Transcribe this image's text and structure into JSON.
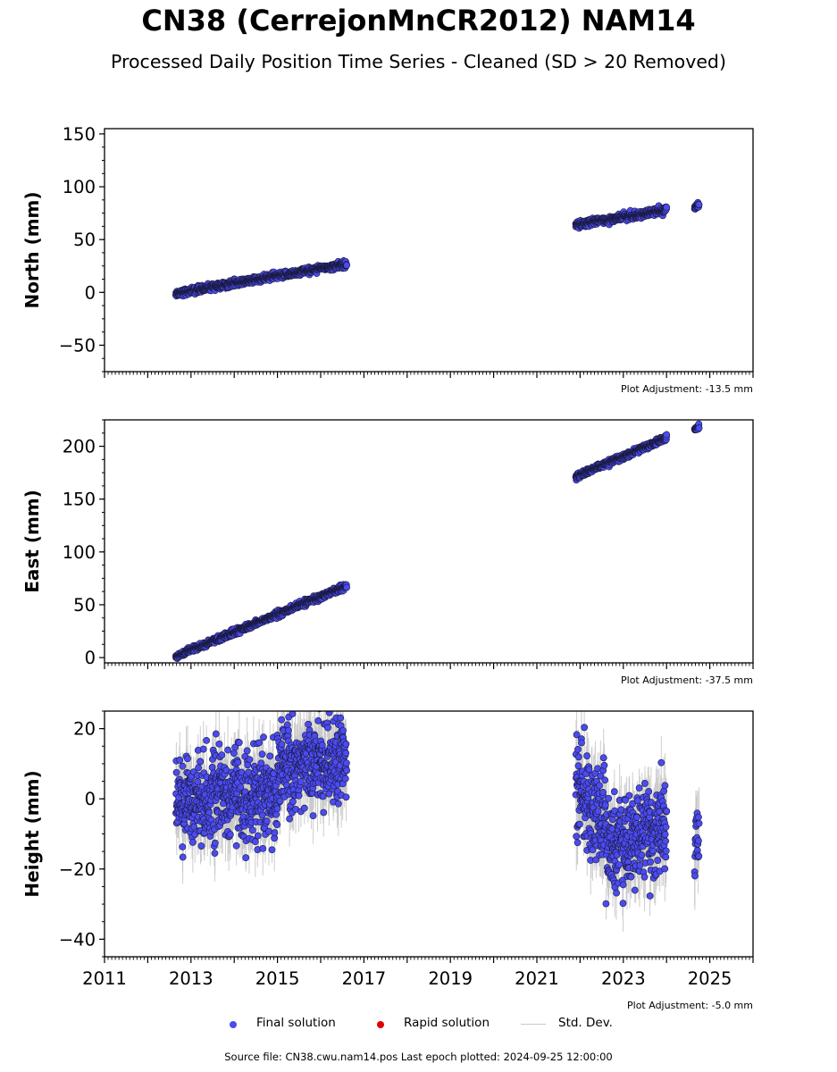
{
  "title": "CN38 (CerrejonMnCR2012) NAM14",
  "subtitle": "Processed Daily Position Time Series - Cleaned (SD > 20 Removed)",
  "source": "Source file: CN38.cwu.nam14.pos  Last epoch plotted: 2024-09-25 12:00:00",
  "legend": {
    "final": "Final solution",
    "rapid": "Rapid solution",
    "std": "Std. Dev."
  },
  "colors": {
    "final": "#4b4bf0",
    "rapid": "#e00000",
    "std": "#c8c8c8"
  },
  "chart_data": [
    {
      "type": "scatter",
      "ylabel": "North (mm)",
      "adjustment": "Plot Adjustment: -13.5 mm",
      "xlim": [
        2011,
        2026
      ],
      "ylim": [
        -75,
        155
      ],
      "yticks": [
        -50,
        0,
        50,
        100,
        150
      ],
      "ytick_labels": [
        "−50",
        "0",
        "50",
        "100",
        "150"
      ],
      "x_tick_labels_shown": false,
      "series": [
        {
          "name": "Final solution",
          "segments": [
            {
              "x0": 2012.65,
              "x1": 2016.6,
              "y0": -1,
              "y1": 27,
              "scatter": 1.5,
              "sd": 3
            },
            {
              "x0": 2021.9,
              "x1": 2024.0,
              "y0": 64,
              "y1": 78,
              "scatter": 1.5,
              "sd": 3
            },
            {
              "x0": 2024.65,
              "x1": 2024.75,
              "y0": 81,
              "y1": 83,
              "scatter": 1.5,
              "sd": 3
            }
          ]
        }
      ]
    },
    {
      "type": "scatter",
      "ylabel": "East (mm)",
      "adjustment": "Plot Adjustment: -37.5 mm",
      "xlim": [
        2011,
        2026
      ],
      "ylim": [
        -5,
        225
      ],
      "yticks": [
        0,
        50,
        100,
        150,
        200
      ],
      "ytick_labels": [
        "0",
        "50",
        "100",
        "150",
        "200"
      ],
      "x_tick_labels_shown": false,
      "series": [
        {
          "name": "Final solution",
          "segments": [
            {
              "x0": 2012.65,
              "x1": 2016.6,
              "y0": 1,
              "y1": 68,
              "scatter": 1.3,
              "sd": 3
            },
            {
              "x0": 2021.9,
              "x1": 2024.0,
              "y0": 171,
              "y1": 208,
              "scatter": 1.3,
              "sd": 3
            },
            {
              "x0": 2024.65,
              "x1": 2024.75,
              "y0": 216,
              "y1": 219,
              "scatter": 1.3,
              "sd": 3
            }
          ]
        }
      ]
    },
    {
      "type": "scatter",
      "ylabel": "Height (mm)",
      "adjustment": "Plot Adjustment: -5.0 mm",
      "xlim": [
        2011,
        2026
      ],
      "ylim": [
        -45,
        25
      ],
      "yticks": [
        -40,
        -20,
        0,
        20
      ],
      "ytick_labels": [
        "−40",
        "−20",
        "0",
        "20"
      ],
      "x_tick_labels_shown": true,
      "xticks": [
        2011,
        2013,
        2015,
        2017,
        2019,
        2021,
        2023,
        2025
      ],
      "xtick_labels": [
        "2011",
        "2013",
        "2015",
        "2017",
        "2019",
        "2021",
        "2023",
        "2025"
      ],
      "series": [
        {
          "name": "Final solution",
          "segments": [
            {
              "x0": 2012.65,
              "x1": 2015.0,
              "y0": 0,
              "y1": 1,
              "scatter": 6,
              "sd": 7
            },
            {
              "x0": 2015.0,
              "x1": 2016.6,
              "y0": 9,
              "y1": 12,
              "scatter": 6,
              "sd": 7
            },
            {
              "x0": 2021.9,
              "x1": 2022.6,
              "y0": 3,
              "y1": -8,
              "scatter": 7,
              "sd": 7
            },
            {
              "x0": 2022.6,
              "x1": 2024.0,
              "y0": -14,
              "y1": -8,
              "scatter": 6,
              "sd": 7
            },
            {
              "x0": 2024.65,
              "x1": 2024.75,
              "y0": -10,
              "y1": -12,
              "scatter": 7,
              "sd": 7
            }
          ]
        }
      ]
    }
  ]
}
